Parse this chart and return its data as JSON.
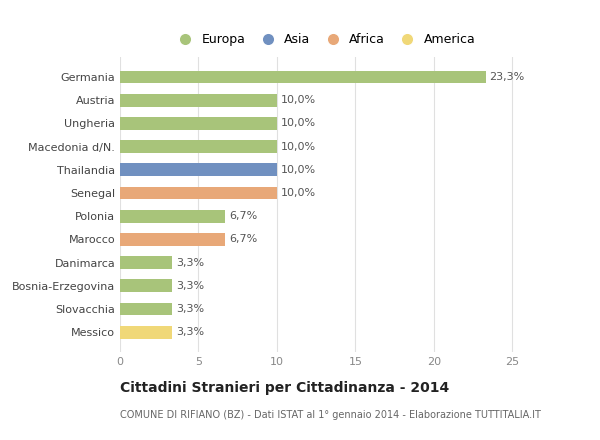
{
  "categories": [
    "Messico",
    "Slovacchia",
    "Bosnia-Erzegovina",
    "Danimarca",
    "Marocco",
    "Polonia",
    "Senegal",
    "Thailandia",
    "Macedonia d/N.",
    "Ungheria",
    "Austria",
    "Germania"
  ],
  "values": [
    3.3,
    3.3,
    3.3,
    3.3,
    6.7,
    6.7,
    10.0,
    10.0,
    10.0,
    10.0,
    10.0,
    23.3
  ],
  "colors": [
    "#f0d878",
    "#a8c47a",
    "#a8c47a",
    "#a8c47a",
    "#e8a878",
    "#a8c47a",
    "#e8a878",
    "#7090c0",
    "#a8c47a",
    "#a8c47a",
    "#a8c47a",
    "#a8c47a"
  ],
  "bar_labels": [
    "3,3%",
    "3,3%",
    "3,3%",
    "3,3%",
    "6,7%",
    "6,7%",
    "10,0%",
    "10,0%",
    "10,0%",
    "10,0%",
    "10,0%",
    "23,3%"
  ],
  "legend_labels": [
    "Europa",
    "Asia",
    "Africa",
    "America"
  ],
  "legend_colors": [
    "#a8c47a",
    "#7090c0",
    "#e8a878",
    "#f0d878"
  ],
  "title": "Cittadini Stranieri per Cittadinanza - 2014",
  "subtitle": "COMUNE DI RIFIANO (BZ) - Dati ISTAT al 1° gennaio 2014 - Elaborazione TUTTITALIA.IT",
  "xlim": [
    0,
    26
  ],
  "xticks": [
    0,
    5,
    10,
    15,
    20,
    25
  ],
  "background_color": "#ffffff",
  "plot_bg_color": "#ffffff",
  "grid_color": "#e0e0e0"
}
